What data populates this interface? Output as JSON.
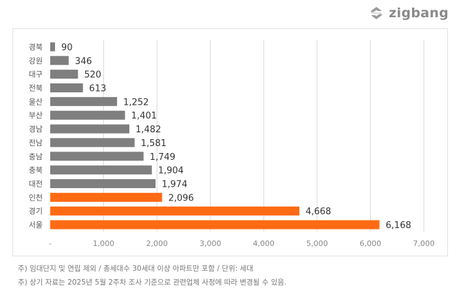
{
  "brand": {
    "name": "zigbang",
    "logo_icon": "zigbang-logo-icon",
    "color": "#8a8a8a"
  },
  "notes": [
    "주) 임대단지 및 연립 제외 / 총세대수 30세대 이상 아파트만 포함 / 단위: 세대",
    "주) 상기 자료는 2025년 5월 2주차 조사 기준으로 관련업체 사정에 따라 변경될 수 있음."
  ],
  "chart_data": {
    "type": "bar",
    "orientation": "horizontal",
    "categories": [
      "경북",
      "강원",
      "대구",
      "전북",
      "울산",
      "부산",
      "경남",
      "전남",
      "충남",
      "충북",
      "대전",
      "인천",
      "경기",
      "서울"
    ],
    "values": [
      90,
      346,
      520,
      613,
      1252,
      1401,
      1482,
      1581,
      1749,
      1904,
      1974,
      2096,
      4668,
      6168
    ],
    "value_labels": [
      "90",
      "346",
      "520",
      "613",
      "1,252",
      "1,401",
      "1,482",
      "1,581",
      "1,749",
      "1,904",
      "1,974",
      "2,096",
      "4,668",
      "6,168"
    ],
    "highlighted": [
      "인천",
      "경기",
      "서울"
    ],
    "colors": {
      "default": "#7f7f7f",
      "highlight": "#ff6a13",
      "grid": "#d9d9d9"
    },
    "xlim": [
      0,
      7000
    ],
    "x_ticks": [
      0,
      1000,
      2000,
      3000,
      4000,
      5000,
      6000,
      7000
    ],
    "x_tick_labels": [
      "-",
      "1,000",
      "2,000",
      "3,000",
      "4,000",
      "5,000",
      "6,000",
      "7,000"
    ],
    "grid": true,
    "legend": "none"
  }
}
